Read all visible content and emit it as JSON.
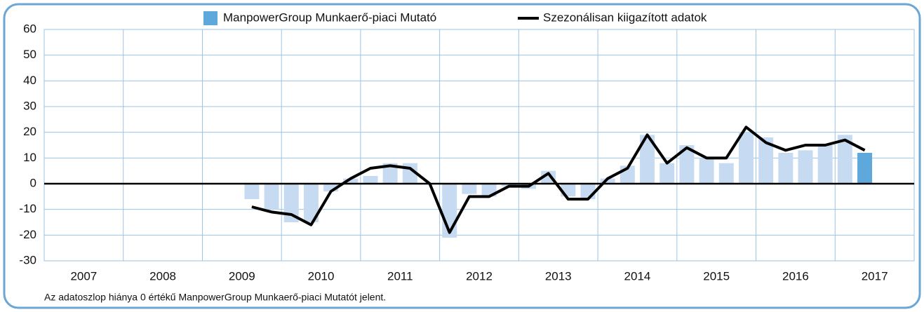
{
  "chart_data": {
    "type": "bar",
    "years": [
      "2007",
      "2008",
      "2009",
      "2010",
      "2011",
      "2012",
      "2013",
      "2014",
      "2015",
      "2016",
      "2017"
    ],
    "series": [
      {
        "name": "ManpowerGroup Munkaerő-piaci Mutató",
        "color": "#c6dbf1",
        "last_color": "#5fa8dc",
        "type": "bar",
        "values": [
          null,
          null,
          null,
          null,
          null,
          null,
          null,
          null,
          null,
          null,
          -6,
          -10,
          -15,
          -15,
          -3,
          2,
          3,
          8,
          8,
          0,
          -21,
          -4,
          -5,
          -1,
          -2,
          5,
          -5,
          -6,
          2,
          7,
          19,
          8,
          15,
          10,
          8,
          20,
          18,
          12,
          13,
          15,
          19,
          12,
          null,
          null
        ]
      },
      {
        "name": "Szezonálisan kiigazított adatok",
        "color": "#000000",
        "type": "line",
        "values": [
          null,
          null,
          null,
          null,
          null,
          null,
          null,
          null,
          null,
          null,
          -9,
          -11,
          -12,
          -16,
          -3,
          2,
          6,
          7,
          6,
          0,
          -19,
          -5,
          -5,
          -1,
          -1,
          4,
          -6,
          -6,
          2,
          6,
          19,
          8,
          14,
          10,
          10,
          22,
          16,
          13,
          15,
          15,
          17,
          13,
          null,
          null
        ]
      }
    ],
    "ylim": [
      -30,
      60
    ],
    "yticks": [
      -30,
      -20,
      -10,
      0,
      10,
      20,
      30,
      40,
      50,
      60
    ],
    "grid": true,
    "legend": "top",
    "note": "Az adatoszlop hiánya 0 értékű ManpowerGroup Munkaerő-piaci Mutatót jelent."
  }
}
